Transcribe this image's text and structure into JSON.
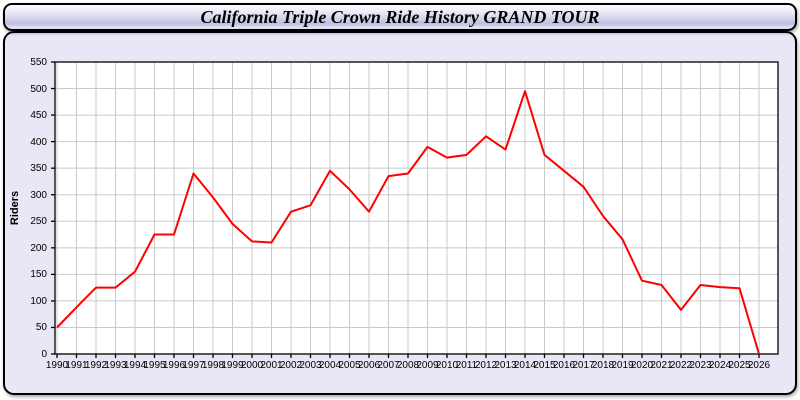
{
  "title": "California Triple Crown Ride History GRAND TOUR",
  "colors": {
    "line": "#ff0000",
    "panel_bg": "#e7e7f6",
    "plot_bg": "#ffffff",
    "grid": "#c9c9c9",
    "axis": "#000000",
    "title_text": "#000000"
  },
  "chart_data": {
    "type": "line",
    "title": "California Triple Crown Ride History GRAND TOUR",
    "ylabel": "Riders",
    "xlabel": "",
    "ylim": [
      0,
      550
    ],
    "ytick_step": 50,
    "grid": true,
    "legend_position": "none",
    "line_color": "#ff0000",
    "x": [
      1990,
      1991,
      1992,
      1993,
      1994,
      1995,
      1996,
      1997,
      1998,
      1999,
      2000,
      2001,
      2002,
      2003,
      2004,
      2005,
      2006,
      2007,
      2008,
      2009,
      2010,
      2011,
      2012,
      2013,
      2014,
      2015,
      2016,
      2017,
      2018,
      2019,
      2020,
      2021,
      2022,
      2023,
      2024,
      2025,
      2026
    ],
    "series": [
      {
        "name": "Riders",
        "values": [
          50,
          88,
          125,
          125,
          155,
          225,
          225,
          340,
          295,
          245,
          212,
          210,
          268,
          280,
          345,
          310,
          268,
          335,
          340,
          390,
          370,
          375,
          410,
          385,
          495,
          375,
          345,
          315,
          260,
          216,
          138,
          130,
          83,
          130,
          126,
          124,
          0
        ]
      }
    ]
  }
}
